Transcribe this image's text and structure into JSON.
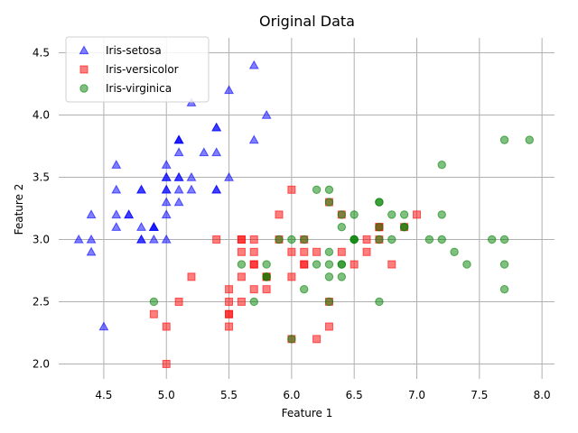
{
  "chart_data": {
    "type": "scatter",
    "title": "Original Data",
    "xlabel": "Feature 1",
    "ylabel": "Feature 2",
    "xlim": [
      4.14,
      8.1
    ],
    "ylim": [
      1.88,
      4.62
    ],
    "xticks": [
      "4.5",
      "5.0",
      "5.5",
      "6.0",
      "6.5",
      "7.0",
      "7.5",
      "8.0"
    ],
    "yticks": [
      "2.0",
      "2.5",
      "3.0",
      "3.5",
      "4.0",
      "4.5"
    ],
    "grid": true,
    "legend_position": "top-left",
    "series": [
      {
        "name": "Iris-setosa",
        "marker": "triangle",
        "color": "#0000ff",
        "points": [
          [
            5.1,
            3.5
          ],
          [
            4.9,
            3.0
          ],
          [
            4.7,
            3.2
          ],
          [
            4.6,
            3.1
          ],
          [
            5.0,
            3.6
          ],
          [
            5.4,
            3.9
          ],
          [
            4.6,
            3.4
          ],
          [
            5.0,
            3.4
          ],
          [
            4.4,
            2.9
          ],
          [
            4.9,
            3.1
          ],
          [
            5.4,
            3.7
          ],
          [
            4.8,
            3.4
          ],
          [
            4.8,
            3.0
          ],
          [
            4.3,
            3.0
          ],
          [
            5.8,
            4.0
          ],
          [
            5.7,
            4.4
          ],
          [
            5.4,
            3.9
          ],
          [
            5.1,
            3.5
          ],
          [
            5.7,
            3.8
          ],
          [
            5.1,
            3.8
          ],
          [
            5.4,
            3.4
          ],
          [
            5.1,
            3.7
          ],
          [
            4.6,
            3.6
          ],
          [
            5.1,
            3.3
          ],
          [
            4.8,
            3.4
          ],
          [
            5.0,
            3.0
          ],
          [
            5.0,
            3.4
          ],
          [
            5.2,
            3.5
          ],
          [
            5.2,
            3.4
          ],
          [
            4.7,
            3.2
          ],
          [
            4.8,
            3.1
          ],
          [
            5.4,
            3.4
          ],
          [
            5.2,
            4.1
          ],
          [
            5.5,
            4.2
          ],
          [
            4.9,
            3.1
          ],
          [
            5.0,
            3.2
          ],
          [
            5.5,
            3.5
          ],
          [
            4.9,
            3.1
          ],
          [
            4.4,
            3.0
          ],
          [
            5.1,
            3.4
          ],
          [
            5.0,
            3.5
          ],
          [
            4.5,
            2.3
          ],
          [
            4.4,
            3.2
          ],
          [
            5.0,
            3.5
          ],
          [
            5.1,
            3.8
          ],
          [
            4.8,
            3.0
          ],
          [
            5.1,
            3.8
          ],
          [
            4.6,
            3.2
          ],
          [
            5.3,
            3.7
          ],
          [
            5.0,
            3.3
          ]
        ]
      },
      {
        "name": "Iris-versicolor",
        "marker": "square",
        "color": "#ff0000",
        "points": [
          [
            7.0,
            3.2
          ],
          [
            6.4,
            3.2
          ],
          [
            6.9,
            3.1
          ],
          [
            5.5,
            2.3
          ],
          [
            6.5,
            2.8
          ],
          [
            5.7,
            2.8
          ],
          [
            6.3,
            3.3
          ],
          [
            4.9,
            2.4
          ],
          [
            6.6,
            2.9
          ],
          [
            5.2,
            2.7
          ],
          [
            5.0,
            2.0
          ],
          [
            5.9,
            3.0
          ],
          [
            6.0,
            2.2
          ],
          [
            6.1,
            2.9
          ],
          [
            5.6,
            2.9
          ],
          [
            6.7,
            3.1
          ],
          [
            5.6,
            3.0
          ],
          [
            5.8,
            2.7
          ],
          [
            6.2,
            2.2
          ],
          [
            5.6,
            2.5
          ],
          [
            5.9,
            3.2
          ],
          [
            6.1,
            2.8
          ],
          [
            6.3,
            2.5
          ],
          [
            6.1,
            2.8
          ],
          [
            6.4,
            2.9
          ],
          [
            6.6,
            3.0
          ],
          [
            6.8,
            2.8
          ],
          [
            6.7,
            3.0
          ],
          [
            6.0,
            2.9
          ],
          [
            5.7,
            2.6
          ],
          [
            5.5,
            2.4
          ],
          [
            5.5,
            2.4
          ],
          [
            5.8,
            2.7
          ],
          [
            6.0,
            2.7
          ],
          [
            5.4,
            3.0
          ],
          [
            6.0,
            3.4
          ],
          [
            6.7,
            3.1
          ],
          [
            6.3,
            2.3
          ],
          [
            5.6,
            3.0
          ],
          [
            5.5,
            2.5
          ],
          [
            5.5,
            2.6
          ],
          [
            6.1,
            3.0
          ],
          [
            5.8,
            2.6
          ],
          [
            5.0,
            2.3
          ],
          [
            5.6,
            2.7
          ],
          [
            5.7,
            3.0
          ],
          [
            5.7,
            2.9
          ],
          [
            6.2,
            2.9
          ],
          [
            5.1,
            2.5
          ],
          [
            5.7,
            2.8
          ]
        ]
      },
      {
        "name": "Iris-virginica",
        "marker": "circle",
        "color": "#008000",
        "points": [
          [
            6.3,
            3.3
          ],
          [
            5.8,
            2.7
          ],
          [
            7.1,
            3.0
          ],
          [
            6.3,
            2.9
          ],
          [
            6.5,
            3.0
          ],
          [
            7.6,
            3.0
          ],
          [
            4.9,
            2.5
          ],
          [
            7.3,
            2.9
          ],
          [
            6.7,
            2.5
          ],
          [
            7.2,
            3.6
          ],
          [
            6.5,
            3.2
          ],
          [
            6.4,
            2.7
          ],
          [
            6.8,
            3.0
          ],
          [
            5.7,
            2.5
          ],
          [
            5.8,
            2.8
          ],
          [
            6.4,
            3.2
          ],
          [
            6.5,
            3.0
          ],
          [
            7.7,
            3.8
          ],
          [
            7.7,
            2.6
          ],
          [
            6.0,
            2.2
          ],
          [
            6.9,
            3.2
          ],
          [
            5.6,
            2.8
          ],
          [
            7.7,
            2.8
          ],
          [
            6.3,
            2.7
          ],
          [
            6.7,
            3.3
          ],
          [
            7.2,
            3.2
          ],
          [
            6.2,
            2.8
          ],
          [
            6.1,
            3.0
          ],
          [
            6.4,
            2.8
          ],
          [
            7.2,
            3.0
          ],
          [
            7.4,
            2.8
          ],
          [
            7.9,
            3.8
          ],
          [
            6.4,
            2.8
          ],
          [
            6.3,
            2.8
          ],
          [
            6.1,
            2.6
          ],
          [
            7.7,
            3.0
          ],
          [
            6.3,
            3.4
          ],
          [
            6.4,
            3.1
          ],
          [
            6.0,
            3.0
          ],
          [
            6.9,
            3.1
          ],
          [
            6.7,
            3.1
          ],
          [
            6.9,
            3.1
          ],
          [
            5.8,
            2.7
          ],
          [
            6.8,
            3.2
          ],
          [
            6.7,
            3.3
          ],
          [
            6.7,
            3.0
          ],
          [
            6.3,
            2.5
          ],
          [
            6.5,
            3.0
          ],
          [
            6.2,
            3.4
          ],
          [
            5.9,
            3.0
          ]
        ]
      }
    ]
  }
}
